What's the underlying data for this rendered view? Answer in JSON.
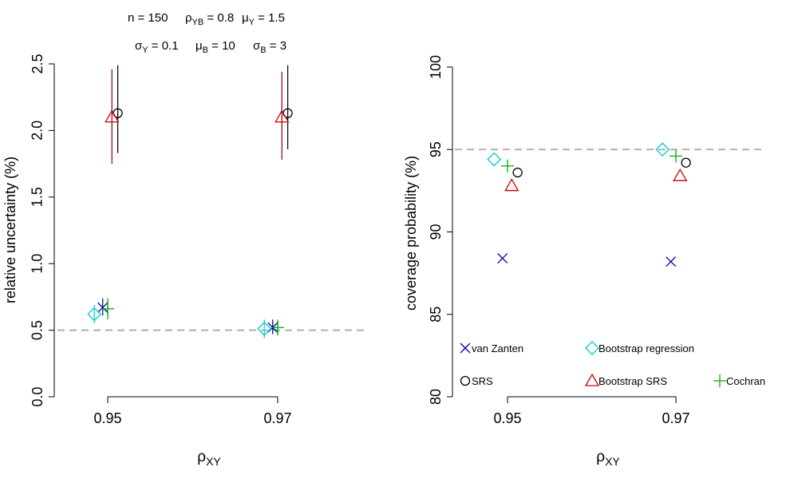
{
  "header": {
    "line1": [
      {
        "base": "n = 150",
        "sub": ""
      },
      {
        "base": "ρ",
        "sub": "YB",
        "tail": " = 0.8"
      },
      {
        "base": "μ",
        "sub": "Y",
        "tail": " = 1.5"
      }
    ],
    "line2": [
      {
        "base": "σ",
        "sub": "Y",
        "tail": " = 0.1"
      },
      {
        "base": "μ",
        "sub": "B",
        "tail": " = 10"
      },
      {
        "base": "σ",
        "sub": "B",
        "tail": " = 3"
      }
    ]
  },
  "colors": {
    "vanZanten": "#0000aa",
    "bootstrapRegression": "#00cccc",
    "srs": "#000000",
    "bootstrapSRS": "#cc0000",
    "cochran": "#00aa00",
    "reference": "#b0b0b0",
    "errorbar_srs": "#000000",
    "errorbar_bootstrapSRS": "#8b0000"
  },
  "chart_data": [
    {
      "type": "scatter",
      "id": "left",
      "ylabel": "relative uncertainty (%)",
      "xlabel": "ρ",
      "xlabel_sub": "XY",
      "categories": [
        "0.95",
        "0.97"
      ],
      "ylim": [
        0,
        2.5
      ],
      "yticks": [
        "0.0",
        "0.5",
        "1.0",
        "1.5",
        "2.0",
        "2.5"
      ],
      "reference_line": 0.5,
      "series": [
        {
          "key": "vanZanten",
          "marker": "x",
          "offset": -0.06,
          "values": [
            0.67,
            0.52
          ],
          "err": [
            [
              0.61,
              0.74
            ],
            [
              0.47,
              0.58
            ]
          ]
        },
        {
          "key": "bootstrapRegression",
          "marker": "diamond",
          "offset": -0.16,
          "values": [
            0.62,
            0.51
          ],
          "err": [
            [
              0.55,
              0.69
            ],
            [
              0.44,
              0.58
            ]
          ]
        },
        {
          "key": "srs",
          "marker": "circle",
          "offset": 0.12,
          "values": [
            2.13,
            2.13
          ],
          "err": [
            [
              1.83,
              2.49
            ],
            [
              1.86,
              2.49
            ]
          ]
        },
        {
          "key": "bootstrapSRS",
          "marker": "triangle",
          "offset": 0.05,
          "values": [
            2.1,
            2.1
          ],
          "err": [
            [
              1.75,
              2.46
            ],
            [
              1.78,
              2.44
            ]
          ]
        },
        {
          "key": "cochran",
          "marker": "plus",
          "offset": 0.0,
          "values": [
            0.66,
            0.52
          ],
          "err": [
            [
              0.58,
              0.74
            ],
            [
              0.46,
              0.58
            ]
          ]
        }
      ]
    },
    {
      "type": "scatter",
      "id": "right",
      "ylabel": "coverage probability (%)",
      "xlabel": "ρ",
      "xlabel_sub": "XY",
      "categories": [
        "0.95",
        "0.97"
      ],
      "ylim": [
        80,
        100
      ],
      "yticks": [
        "80",
        "85",
        "90",
        "95",
        "100"
      ],
      "reference_line": 95,
      "series": [
        {
          "key": "vanZanten",
          "marker": "x",
          "offset": -0.06,
          "values": [
            88.4,
            88.2
          ]
        },
        {
          "key": "bootstrapRegression",
          "marker": "diamond",
          "offset": -0.16,
          "values": [
            94.4,
            95.0
          ]
        },
        {
          "key": "srs",
          "marker": "circle",
          "offset": 0.12,
          "values": [
            93.6,
            94.2
          ]
        },
        {
          "key": "bootstrapSRS",
          "marker": "triangle",
          "offset": 0.05,
          "values": [
            92.8,
            93.4
          ]
        },
        {
          "key": "cochran",
          "marker": "plus",
          "offset": 0.0,
          "values": [
            94.0,
            94.6
          ]
        }
      ],
      "legend": [
        {
          "key": "vanZanten",
          "marker": "x",
          "label": "van Zanten"
        },
        {
          "key": "bootstrapRegression",
          "marker": "diamond",
          "label": "Bootstrap regression"
        },
        {
          "key": "srs",
          "marker": "circle",
          "label": "SRS"
        },
        {
          "key": "bootstrapSRS",
          "marker": "triangle",
          "label": "Bootstrap SRS"
        },
        {
          "key": "cochran",
          "marker": "plus",
          "label": "Cochran"
        }
      ]
    }
  ]
}
